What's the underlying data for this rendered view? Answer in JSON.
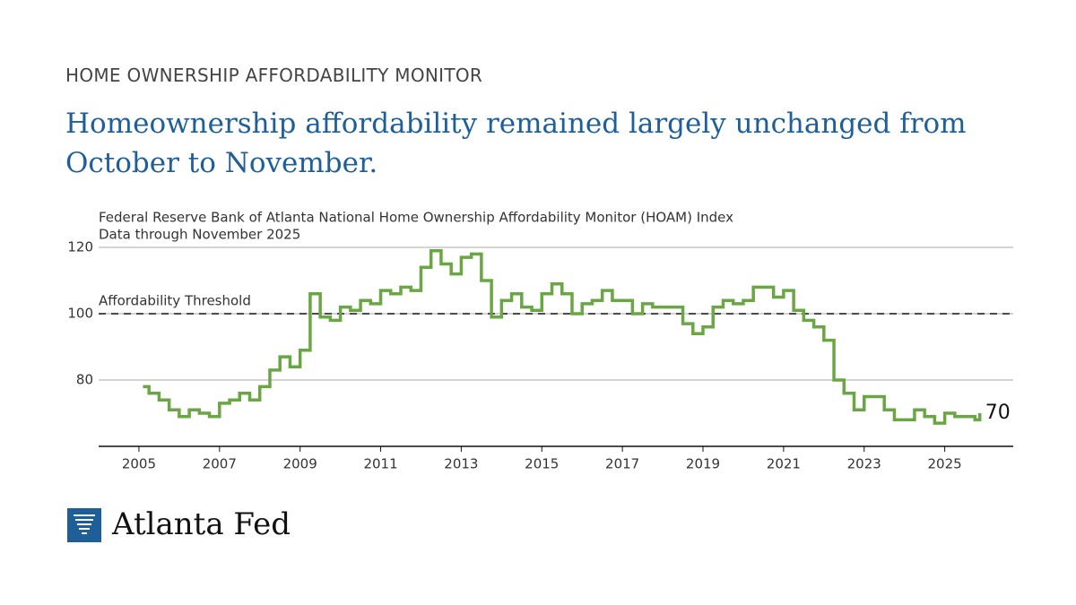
{
  "chart_data": {
    "type": "line",
    "kicker": "HOME OWNERSHIP AFFORDABILITY MONITOR",
    "title": "Homeownership affordability remained largely unchanged from October to November.",
    "subtitle": "Federal Reserve Bank of Atlanta National Home Ownership Affordability Monitor (HOAM) Index",
    "note": "Data through November 2025",
    "brand": "Atlanta Fed",
    "step": true,
    "grid": true,
    "xlim": [
      2004,
      2026.7
    ],
    "xticks": [
      2005,
      2007,
      2009,
      2011,
      2013,
      2015,
      2017,
      2019,
      2021,
      2023,
      2025
    ],
    "ylim": [
      60,
      120
    ],
    "yticks": [
      80,
      100,
      120
    ],
    "threshold": {
      "value": 100,
      "label": "Affordability Threshold"
    },
    "x": [
      2005.1,
      2005.25,
      2005.5,
      2005.75,
      2006.0,
      2006.25,
      2006.5,
      2006.75,
      2007.0,
      2007.25,
      2007.5,
      2007.75,
      2008.0,
      2008.25,
      2008.5,
      2008.75,
      2009.0,
      2009.25,
      2009.5,
      2009.75,
      2010.0,
      2010.25,
      2010.5,
      2010.75,
      2011.0,
      2011.25,
      2011.5,
      2011.75,
      2012.0,
      2012.25,
      2012.5,
      2012.75,
      2013.0,
      2013.25,
      2013.5,
      2013.75,
      2014.0,
      2014.25,
      2014.5,
      2014.75,
      2015.0,
      2015.25,
      2015.5,
      2015.75,
      2016.0,
      2016.25,
      2016.5,
      2016.75,
      2017.0,
      2017.25,
      2017.5,
      2017.75,
      2018.0,
      2018.25,
      2018.5,
      2018.75,
      2019.0,
      2019.25,
      2019.5,
      2019.75,
      2020.0,
      2020.25,
      2020.5,
      2020.75,
      2021.0,
      2021.25,
      2021.5,
      2021.75,
      2022.0,
      2022.25,
      2022.5,
      2022.75,
      2023.0,
      2023.25,
      2023.5,
      2023.75,
      2024.0,
      2024.25,
      2024.5,
      2024.75,
      2025.0,
      2025.25,
      2025.5,
      2025.75,
      2025.87
    ],
    "series": [
      {
        "name": "HOAM Index",
        "color": "#6ba644",
        "values": [
          78,
          76,
          74,
          71,
          69,
          71,
          70,
          69,
          73,
          74,
          76,
          74,
          78,
          83,
          87,
          84,
          89,
          106,
          99,
          98,
          102,
          101,
          104,
          103,
          107,
          106,
          108,
          107,
          114,
          119,
          115,
          112,
          117,
          118,
          110,
          99,
          104,
          106,
          102,
          101,
          106,
          109,
          106,
          100,
          103,
          104,
          107,
          104,
          104,
          100,
          103,
          102,
          102,
          102,
          97,
          94,
          96,
          102,
          104,
          103,
          104,
          108,
          108,
          105,
          107,
          101,
          98,
          96,
          92,
          80,
          76,
          71,
          75,
          75,
          71,
          68,
          68,
          71,
          69,
          67,
          70,
          69,
          69,
          68,
          70
        ]
      }
    ]
  }
}
